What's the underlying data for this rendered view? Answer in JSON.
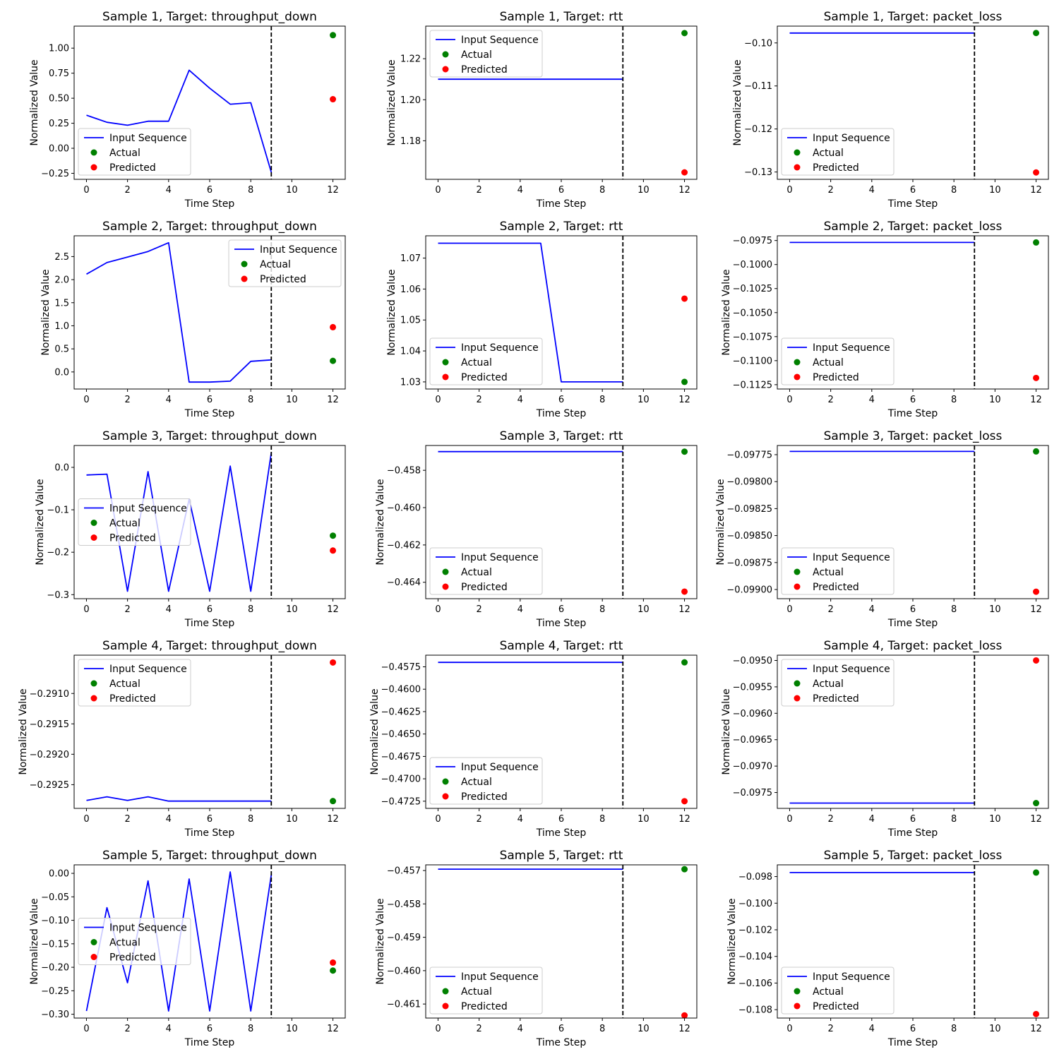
{
  "chart_data": [
    {
      "type": "line",
      "title": "Sample 1, Target: throughput_down",
      "xlabel": "Time Step",
      "ylabel": "Normalized Value",
      "xlim": [
        -0.6,
        12.6
      ],
      "ylim": [
        -0.31,
        1.22
      ],
      "xticks": [
        "0",
        "2",
        "4",
        "6",
        "8",
        "10",
        "12"
      ],
      "yticks": [
        "−0.25",
        "0.00",
        "0.25",
        "0.50",
        "0.75",
        "1.00"
      ],
      "legend": {
        "placement": "lower-left",
        "items": [
          "Input Sequence",
          "Actual",
          "Predicted"
        ]
      },
      "input_sequence": {
        "x": [
          0,
          1,
          2,
          3,
          4,
          5,
          6,
          7,
          8,
          9
        ],
        "y": [
          0.33,
          0.26,
          0.23,
          0.27,
          0.27,
          0.78,
          0.6,
          0.44,
          0.455,
          -0.24
        ]
      },
      "actual": {
        "x": 12,
        "y": 1.13
      },
      "predicted": {
        "x": 12,
        "y": 0.49
      },
      "cutoff_x": 9
    },
    {
      "type": "line",
      "title": "Sample 1, Target: rtt",
      "xlabel": "Time Step",
      "ylabel": "Normalized Value",
      "xlim": [
        -0.6,
        12.6
      ],
      "ylim": [
        1.1612,
        1.2359
      ],
      "xticks": [
        "0",
        "2",
        "4",
        "6",
        "8",
        "10",
        "12"
      ],
      "yticks": [
        "1.18",
        "1.20",
        "1.22"
      ],
      "legend": {
        "placement": "upper-left",
        "items": [
          "Input Sequence",
          "Actual",
          "Predicted"
        ]
      },
      "input_sequence": {
        "x": [
          0,
          1,
          2,
          3,
          4,
          5,
          6,
          7,
          8,
          9
        ],
        "y": [
          1.21,
          1.21,
          1.21,
          1.21,
          1.21,
          1.21,
          1.21,
          1.21,
          1.21,
          1.21
        ]
      },
      "actual": {
        "x": 12,
        "y": 1.2325
      },
      "predicted": {
        "x": 12,
        "y": 1.1646
      },
      "cutoff_x": 9
    },
    {
      "type": "line",
      "title": "Sample 1, Target: packet_loss",
      "xlabel": "Time Step",
      "ylabel": "Normalized Value",
      "xlim": [
        -0.6,
        12.6
      ],
      "ylim": [
        -0.1317,
        -0.0961
      ],
      "xticks": [
        "0",
        "2",
        "4",
        "6",
        "8",
        "10",
        "12"
      ],
      "yticks": [
        "−0.13",
        "−0.12",
        "−0.11",
        "−0.10"
      ],
      "legend": {
        "placement": "lower-left",
        "items": [
          "Input Sequence",
          "Actual",
          "Predicted"
        ]
      },
      "input_sequence": {
        "x": [
          0,
          1,
          2,
          3,
          4,
          5,
          6,
          7,
          8,
          9
        ],
        "y": [
          -0.0977,
          -0.0977,
          -0.0977,
          -0.0977,
          -0.0977,
          -0.0977,
          -0.0977,
          -0.0977,
          -0.0977,
          -0.0977
        ]
      },
      "actual": {
        "x": 12,
        "y": -0.0977
      },
      "predicted": {
        "x": 12,
        "y": -0.1301
      },
      "cutoff_x": 9
    },
    {
      "type": "line",
      "title": "Sample 2, Target: throughput_down",
      "xlabel": "Time Step",
      "ylabel": "Normalized Value",
      "xlim": [
        -0.6,
        12.6
      ],
      "ylim": [
        -0.37,
        2.95
      ],
      "xticks": [
        "0",
        "2",
        "4",
        "6",
        "8",
        "10",
        "12"
      ],
      "yticks": [
        "0.0",
        "0.5",
        "1.0",
        "1.5",
        "2.0",
        "2.5"
      ],
      "legend": {
        "placement": "upper-right",
        "items": [
          "Input Sequence",
          "Actual",
          "Predicted"
        ]
      },
      "input_sequence": {
        "x": [
          0,
          1,
          2,
          3,
          4,
          5,
          6,
          7,
          8,
          9
        ],
        "y": [
          2.12,
          2.37,
          2.49,
          2.61,
          2.8,
          -0.22,
          -0.22,
          -0.2,
          0.23,
          0.26
        ]
      },
      "actual": {
        "x": 12,
        "y": 0.24
      },
      "predicted": {
        "x": 12,
        "y": 0.97
      },
      "cutoff_x": 9
    },
    {
      "type": "line",
      "title": "Sample 2, Target: rtt",
      "xlabel": "Time Step",
      "ylabel": "Normalized Value",
      "xlim": [
        -0.6,
        12.6
      ],
      "ylim": [
        1.0277,
        1.0772
      ],
      "xticks": [
        "0",
        "2",
        "4",
        "6",
        "8",
        "10",
        "12"
      ],
      "yticks": [
        "1.03",
        "1.04",
        "1.05",
        "1.06",
        "1.07"
      ],
      "legend": {
        "placement": "lower-left",
        "items": [
          "Input Sequence",
          "Actual",
          "Predicted"
        ]
      },
      "input_sequence": {
        "x": [
          0,
          1,
          2,
          3,
          4,
          5,
          6,
          7,
          8,
          9
        ],
        "y": [
          1.0748,
          1.0748,
          1.0748,
          1.0748,
          1.0748,
          1.0748,
          1.03,
          1.03,
          1.03,
          1.03
        ]
      },
      "actual": {
        "x": 12,
        "y": 1.03
      },
      "predicted": {
        "x": 12,
        "y": 1.0569
      },
      "cutoff_x": 9
    },
    {
      "type": "line",
      "title": "Sample 2, Target: packet_loss",
      "xlabel": "Time Step",
      "ylabel": "Normalized Value",
      "xlim": [
        -0.6,
        12.6
      ],
      "ylim": [
        -0.11295,
        -0.09701
      ],
      "xticks": [
        "0",
        "2",
        "4",
        "6",
        "8",
        "10",
        "12"
      ],
      "yticks": [
        "−0.1125",
        "−0.1100",
        "−0.1075",
        "−0.1050",
        "−0.1025",
        "−0.1000",
        "−0.0975"
      ],
      "legend": {
        "placement": "lower-left",
        "items": [
          "Input Sequence",
          "Actual",
          "Predicted"
        ]
      },
      "input_sequence": {
        "x": [
          0,
          1,
          2,
          3,
          4,
          5,
          6,
          7,
          8,
          9
        ],
        "y": [
          -0.0977,
          -0.0977,
          -0.0977,
          -0.0977,
          -0.0977,
          -0.0977,
          -0.0977,
          -0.0977,
          -0.0977,
          -0.0977
        ]
      },
      "actual": {
        "x": 12,
        "y": -0.0977
      },
      "predicted": {
        "x": 12,
        "y": -0.1118
      },
      "cutoff_x": 9
    },
    {
      "type": "line",
      "title": "Sample 3, Target: throughput_down",
      "xlabel": "Time Step",
      "ylabel": "Normalized Value",
      "xlim": [
        -0.6,
        12.6
      ],
      "ylim": [
        -0.3095,
        0.0515
      ],
      "xticks": [
        "0",
        "2",
        "4",
        "6",
        "8",
        "10",
        "12"
      ],
      "yticks": [
        "−0.3",
        "−0.2",
        "−0.1",
        "0.0"
      ],
      "legend": {
        "placement": "center-left",
        "items": [
          "Input Sequence",
          "Actual",
          "Predicted"
        ]
      },
      "input_sequence": {
        "x": [
          0,
          1,
          2,
          3,
          4,
          5,
          6,
          7,
          8,
          9
        ],
        "y": [
          -0.018,
          -0.016,
          -0.292,
          -0.01,
          -0.292,
          -0.075,
          -0.292,
          0.003,
          -0.292,
          0.035
        ]
      },
      "actual": {
        "x": 12,
        "y": -0.161
      },
      "predicted": {
        "x": 12,
        "y": -0.196
      },
      "cutoff_x": 9
    },
    {
      "type": "line",
      "title": "Sample 3, Target: rtt",
      "xlabel": "Time Step",
      "ylabel": "Normalized Value",
      "xlim": [
        -0.6,
        12.6
      ],
      "ylim": [
        -0.46488,
        -0.45667
      ],
      "xticks": [
        "0",
        "2",
        "4",
        "6",
        "8",
        "10",
        "12"
      ],
      "yticks": [
        "−0.464",
        "−0.462",
        "−0.460",
        "−0.458"
      ],
      "legend": {
        "placement": "lower-left",
        "items": [
          "Input Sequence",
          "Actual",
          "Predicted"
        ]
      },
      "input_sequence": {
        "x": [
          0,
          1,
          2,
          3,
          4,
          5,
          6,
          7,
          8,
          9
        ],
        "y": [
          -0.457,
          -0.457,
          -0.457,
          -0.457,
          -0.457,
          -0.457,
          -0.457,
          -0.457,
          -0.457,
          -0.457
        ]
      },
      "actual": {
        "x": 12,
        "y": -0.457
      },
      "predicted": {
        "x": 12,
        "y": -0.4645
      },
      "cutoff_x": 9
    },
    {
      "type": "line",
      "title": "Sample 3, Target: packet_loss",
      "xlabel": "Time Step",
      "ylabel": "Normalized Value",
      "xlim": [
        -0.6,
        12.6
      ],
      "ylim": [
        -0.099085,
        -0.097665
      ],
      "xticks": [
        "0",
        "2",
        "4",
        "6",
        "8",
        "10",
        "12"
      ],
      "yticks": [
        "−0.09900",
        "−0.09875",
        "−0.09850",
        "−0.09825",
        "−0.09800",
        "−0.09775"
      ],
      "legend": {
        "placement": "lower-left",
        "items": [
          "Input Sequence",
          "Actual",
          "Predicted"
        ]
      },
      "input_sequence": {
        "x": [
          0,
          1,
          2,
          3,
          4,
          5,
          6,
          7,
          8,
          9
        ],
        "y": [
          -0.09772,
          -0.09772,
          -0.09772,
          -0.09772,
          -0.09772,
          -0.09772,
          -0.09772,
          -0.09772,
          -0.09772,
          -0.09772
        ]
      },
      "actual": {
        "x": 12,
        "y": -0.09772
      },
      "predicted": {
        "x": 12,
        "y": -0.09902
      },
      "cutoff_x": 9
    },
    {
      "type": "line",
      "title": "Sample 4, Target: throughput_down",
      "xlabel": "Time Step",
      "ylabel": "Normalized Value",
      "xlim": [
        -0.6,
        12.6
      ],
      "ylim": [
        -0.29289,
        -0.29037
      ],
      "xticks": [
        "0",
        "2",
        "4",
        "6",
        "8",
        "10",
        "12"
      ],
      "yticks": [
        "−0.2925",
        "−0.2920",
        "−0.2915",
        "−0.2910"
      ],
      "legend": {
        "placement": "upper-left",
        "items": [
          "Input Sequence",
          "Actual",
          "Predicted"
        ]
      },
      "input_sequence": {
        "x": [
          0,
          1,
          2,
          3,
          4,
          5,
          6,
          7,
          8,
          9
        ],
        "y": [
          -0.29276,
          -0.2927,
          -0.29276,
          -0.2927,
          -0.29277,
          -0.29277,
          -0.29277,
          -0.29277,
          -0.29277,
          -0.29277
        ]
      },
      "actual": {
        "x": 12,
        "y": -0.29277
      },
      "predicted": {
        "x": 12,
        "y": -0.29049
      },
      "cutoff_x": 9
    },
    {
      "type": "line",
      "title": "Sample 4, Target: rtt",
      "xlabel": "Time Step",
      "ylabel": "Normalized Value",
      "xlim": [
        -0.6,
        12.6
      ],
      "ylim": [
        -0.4733,
        -0.4562
      ],
      "xticks": [
        "0",
        "2",
        "4",
        "6",
        "8",
        "10",
        "12"
      ],
      "yticks": [
        "−0.4725",
        "−0.4700",
        "−0.4675",
        "−0.4650",
        "−0.4625",
        "−0.4600",
        "−0.4575"
      ],
      "legend": {
        "placement": "lower-left",
        "items": [
          "Input Sequence",
          "Actual",
          "Predicted"
        ]
      },
      "input_sequence": {
        "x": [
          0,
          1,
          2,
          3,
          4,
          5,
          6,
          7,
          8,
          9
        ],
        "y": [
          -0.457,
          -0.457,
          -0.457,
          -0.457,
          -0.457,
          -0.457,
          -0.457,
          -0.457,
          -0.457,
          -0.457
        ]
      },
      "actual": {
        "x": 12,
        "y": -0.457
      },
      "predicted": {
        "x": 12,
        "y": -0.4725
      },
      "cutoff_x": 9
    },
    {
      "type": "line",
      "title": "Sample 4, Target: packet_loss",
      "xlabel": "Time Step",
      "ylabel": "Normalized Value",
      "xlim": [
        -0.6,
        12.6
      ],
      "ylim": [
        -0.0978,
        -0.0949
      ],
      "xticks": [
        "0",
        "2",
        "4",
        "6",
        "8",
        "10",
        "12"
      ],
      "yticks": [
        "−0.0975",
        "−0.0970",
        "−0.0965",
        "−0.0960",
        "−0.0955",
        "−0.0950"
      ],
      "legend": {
        "placement": "upper-left",
        "items": [
          "Input Sequence",
          "Actual",
          "Predicted"
        ]
      },
      "input_sequence": {
        "x": [
          0,
          1,
          2,
          3,
          4,
          5,
          6,
          7,
          8,
          9
        ],
        "y": [
          -0.0977,
          -0.0977,
          -0.0977,
          -0.0977,
          -0.0977,
          -0.0977,
          -0.0977,
          -0.0977,
          -0.0977,
          -0.0977
        ]
      },
      "actual": {
        "x": 12,
        "y": -0.0977
      },
      "predicted": {
        "x": 12,
        "y": -0.095
      },
      "cutoff_x": 9
    },
    {
      "type": "line",
      "title": "Sample 5, Target: throughput_down",
      "xlabel": "Time Step",
      "ylabel": "Normalized Value",
      "xlim": [
        -0.6,
        12.6
      ],
      "ylim": [
        -0.3081,
        0.0181
      ],
      "xticks": [
        "0",
        "2",
        "4",
        "6",
        "8",
        "10",
        "12"
      ],
      "yticks": [
        "−0.30",
        "−0.25",
        "−0.20",
        "−0.15",
        "−0.10",
        "−0.05",
        "0.00"
      ],
      "legend": {
        "placement": "center-left",
        "items": [
          "Input Sequence",
          "Actual",
          "Predicted"
        ]
      },
      "input_sequence": {
        "x": [
          0,
          1,
          2,
          3,
          4,
          5,
          6,
          7,
          8,
          9
        ],
        "y": [
          -0.293,
          -0.073,
          -0.233,
          -0.016,
          -0.293,
          -0.012,
          -0.293,
          0.003,
          -0.293,
          -0.003
        ]
      },
      "actual": {
        "x": 12,
        "y": -0.207
      },
      "predicted": {
        "x": 12,
        "y": -0.19
      },
      "cutoff_x": 9
    },
    {
      "type": "line",
      "title": "Sample 5, Target: rtt",
      "xlabel": "Time Step",
      "ylabel": "Normalized Value",
      "xlim": [
        -0.6,
        12.6
      ],
      "ylim": [
        -0.46142,
        -0.45683
      ],
      "xticks": [
        "0",
        "2",
        "4",
        "6",
        "8",
        "10",
        "12"
      ],
      "yticks": [
        "−0.461",
        "−0.460",
        "−0.459",
        "−0.458",
        "−0.457"
      ],
      "legend": {
        "placement": "lower-left",
        "items": [
          "Input Sequence",
          "Actual",
          "Predicted"
        ]
      },
      "input_sequence": {
        "x": [
          0,
          1,
          2,
          3,
          4,
          5,
          6,
          7,
          8,
          9
        ],
        "y": [
          -0.45696,
          -0.45696,
          -0.45696,
          -0.45696,
          -0.45696,
          -0.45696,
          -0.45696,
          -0.45696,
          -0.45696,
          -0.45696
        ]
      },
      "actual": {
        "x": 12,
        "y": -0.45696
      },
      "predicted": {
        "x": 12,
        "y": -0.46134
      },
      "cutoff_x": 9
    },
    {
      "type": "line",
      "title": "Sample 5, Target: packet_loss",
      "xlabel": "Time Step",
      "ylabel": "Normalized Value",
      "xlim": [
        -0.6,
        12.6
      ],
      "ylim": [
        -0.10863,
        -0.09712
      ],
      "xticks": [
        "0",
        "2",
        "4",
        "6",
        "8",
        "10",
        "12"
      ],
      "yticks": [
        "−0.108",
        "−0.106",
        "−0.104",
        "−0.102",
        "−0.100",
        "−0.098"
      ],
      "legend": {
        "placement": "lower-left",
        "items": [
          "Input Sequence",
          "Actual",
          "Predicted"
        ]
      },
      "input_sequence": {
        "x": [
          0,
          1,
          2,
          3,
          4,
          5,
          6,
          7,
          8,
          9
        ],
        "y": [
          -0.0977,
          -0.0977,
          -0.0977,
          -0.0977,
          -0.0977,
          -0.0977,
          -0.0977,
          -0.0977,
          -0.0977,
          -0.0977
        ]
      },
      "actual": {
        "x": 12,
        "y": -0.0977
      },
      "predicted": {
        "x": 12,
        "y": -0.10833
      },
      "cutoff_x": 9
    }
  ],
  "colors": {
    "input_sequence": "#0000ff",
    "actual": "#008000",
    "predicted": "#ff0000",
    "cutoff_line": "#000000",
    "axes": "#000000",
    "legend_border": "#cccccc"
  }
}
